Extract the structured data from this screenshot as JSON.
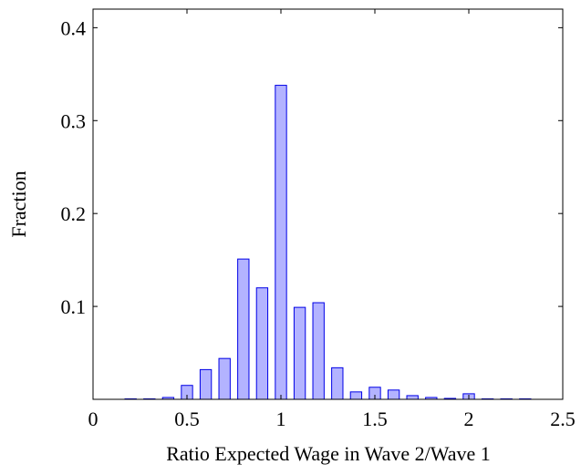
{
  "chart_data": {
    "type": "bar",
    "xlabel": "Ratio Expected Wage in Wave 2/Wave 1",
    "ylabel": "Fraction",
    "x": [
      0.2,
      0.3,
      0.4,
      0.5,
      0.6,
      0.7,
      0.8,
      0.9,
      1.0,
      1.1,
      1.2,
      1.3,
      1.4,
      1.5,
      1.6,
      1.7,
      1.8,
      1.9,
      2.0,
      2.1,
      2.2,
      2.3
    ],
    "values": [
      0.0005,
      0.0005,
      0.002,
      0.015,
      0.032,
      0.044,
      0.151,
      0.12,
      0.338,
      0.099,
      0.104,
      0.034,
      0.008,
      0.013,
      0.01,
      0.004,
      0.002,
      0.001,
      0.006,
      0.0005,
      0.0005,
      0.0005
    ],
    "color": "#b3b3ff",
    "edgecolor": "#0000e6",
    "xlim": [
      0,
      2.5
    ],
    "xticks": [
      0,
      0.5,
      1,
      1.5,
      2,
      2.5
    ],
    "ylim": [
      0,
      0.42
    ],
    "yticks": [
      0.1,
      0.2,
      0.3,
      0.4
    ]
  }
}
